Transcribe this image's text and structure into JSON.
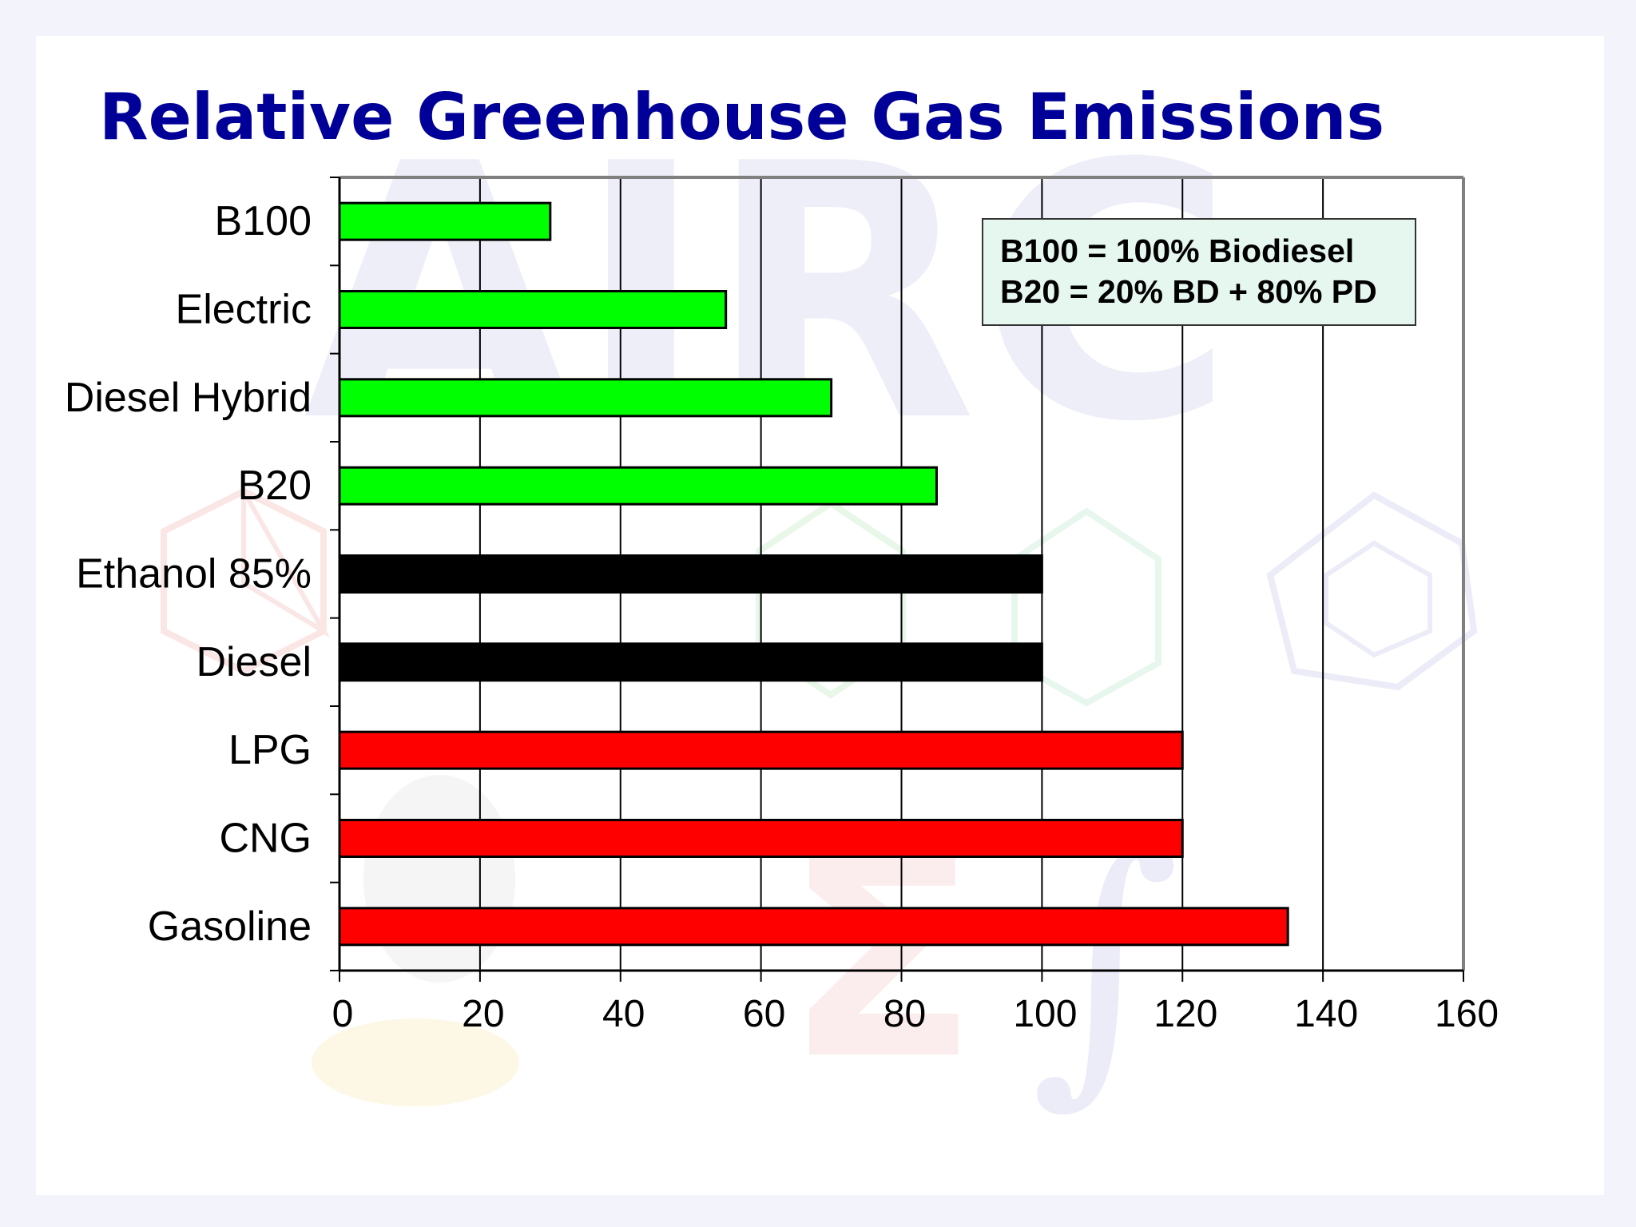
{
  "chart_data": {
    "type": "bar",
    "orientation": "horizontal",
    "title": "Relative Greenhouse Gas Emissions",
    "xlabel": "",
    "ylabel": "",
    "categories": [
      "B100",
      "Electric",
      "Diesel Hybrid",
      "B20",
      "Ethanol 85%",
      "Diesel",
      "LPG",
      "CNG",
      "Gasoline"
    ],
    "values": [
      30,
      55,
      70,
      85,
      100,
      100,
      120,
      120,
      135
    ],
    "bar_colors": [
      "#00ff00",
      "#00ff00",
      "#00ff00",
      "#00ff00",
      "#000000",
      "#000000",
      "#ff0000",
      "#ff0000",
      "#ff0000"
    ],
    "xlim": [
      0,
      160
    ],
    "x_ticks": [
      0,
      20,
      40,
      60,
      80,
      100,
      120,
      140,
      160
    ],
    "grid": "vertical",
    "note": {
      "lines": [
        "B100 = 100% Biodiesel",
        "B20 = 20% BD + 80% PD"
      ],
      "placement": "top-right"
    }
  }
}
